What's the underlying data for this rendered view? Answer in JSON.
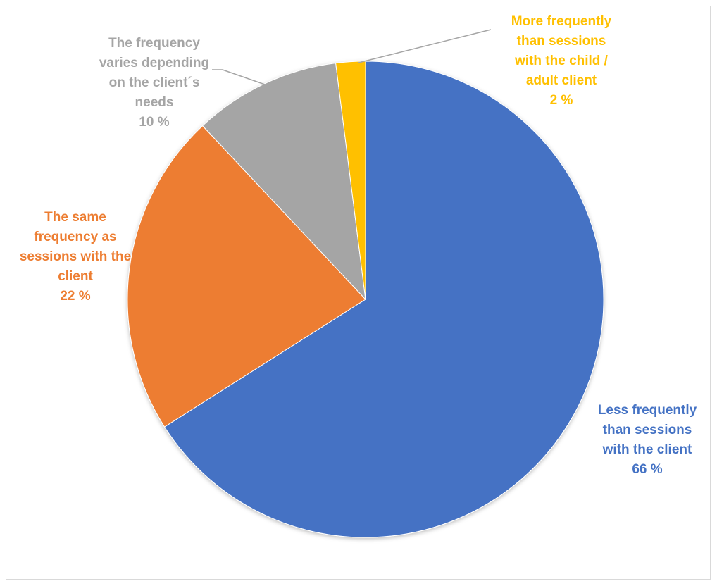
{
  "chart_data": {
    "type": "pie",
    "title": "",
    "slices": [
      {
        "label_lines": [
          "Less frequently",
          "than sessions",
          "with the client"
        ],
        "value": 66,
        "value_label": "66 %",
        "color": "#4472C4"
      },
      {
        "label_lines": [
          "The same",
          "frequency as",
          "sessions with the",
          "client"
        ],
        "value": 22,
        "value_label": "22 %",
        "color": "#ED7D31"
      },
      {
        "label_lines": [
          "The frequency",
          "varies depending",
          "on the client´s",
          "needs"
        ],
        "value": 10,
        "value_label": "10 %",
        "color": "#A5A5A5"
      },
      {
        "label_lines": [
          "More frequently",
          "than sessions",
          "with the child /",
          "adult client"
        ],
        "value": 2,
        "value_label": "2 %",
        "color": "#FFC000"
      }
    ],
    "legend": "none",
    "data_labels": "outside"
  }
}
